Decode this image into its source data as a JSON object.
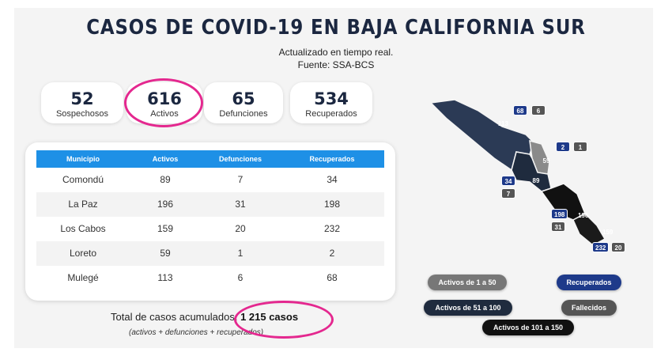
{
  "header": {
    "title": "CASOS DE COVID-19 EN BAJA CALIFORNIA SUR",
    "updated": "Actualizado en tiempo real.",
    "source": "Fuente: SSA-BCS"
  },
  "stats": [
    {
      "value": "52",
      "label": "Sospechosos"
    },
    {
      "value": "616",
      "label": "Activos"
    },
    {
      "value": "65",
      "label": "Defunciones"
    },
    {
      "value": "534",
      "label": "Recuperados"
    }
  ],
  "table": {
    "headers": [
      "Municipio",
      "Activos",
      "Defunciones",
      "Recuperados"
    ],
    "rows": [
      [
        "Comondú",
        "89",
        "7",
        "34"
      ],
      [
        "La Paz",
        "196",
        "31",
        "198"
      ],
      [
        "Los Cabos",
        "159",
        "20",
        "232"
      ],
      [
        "Loreto",
        "59",
        "1",
        "2"
      ],
      [
        "Mulegé",
        "113",
        "6",
        "68"
      ]
    ]
  },
  "totals": {
    "label": "Total de casos acumulados:",
    "value": "1 215 casos",
    "note": "(activos + defunciones + recuperados)"
  },
  "map": {
    "mulege": {
      "activos": "113",
      "recuperados": "68",
      "defunciones": "6"
    },
    "loreto": {
      "activos": "59",
      "recuperados": "2",
      "defunciones": "1"
    },
    "comondu": {
      "activos": "89",
      "recuperados": "34",
      "defunciones": "7"
    },
    "lapaz": {
      "activos": "196",
      "recuperados": "198",
      "defunciones": "31"
    },
    "loscabos": {
      "activos": "159",
      "recuperados": "232",
      "defunciones": "20"
    }
  },
  "legend": {
    "range1": "Activos de 1 a 50",
    "range2": "Activos de 51 a 100",
    "range3": "Activos de 101 a 150",
    "recuperados": "Recuperados",
    "fallecidos": "Fallecidos"
  },
  "colors": {
    "navy": "#1b2740",
    "table_header": "#1e90e6",
    "highlight_ring": "#e4288f",
    "recuperados": "#1e3a8a",
    "fallecidos": "#555555",
    "range1": "#777777",
    "range2": "#1f2b3e",
    "range3": "#111111"
  }
}
